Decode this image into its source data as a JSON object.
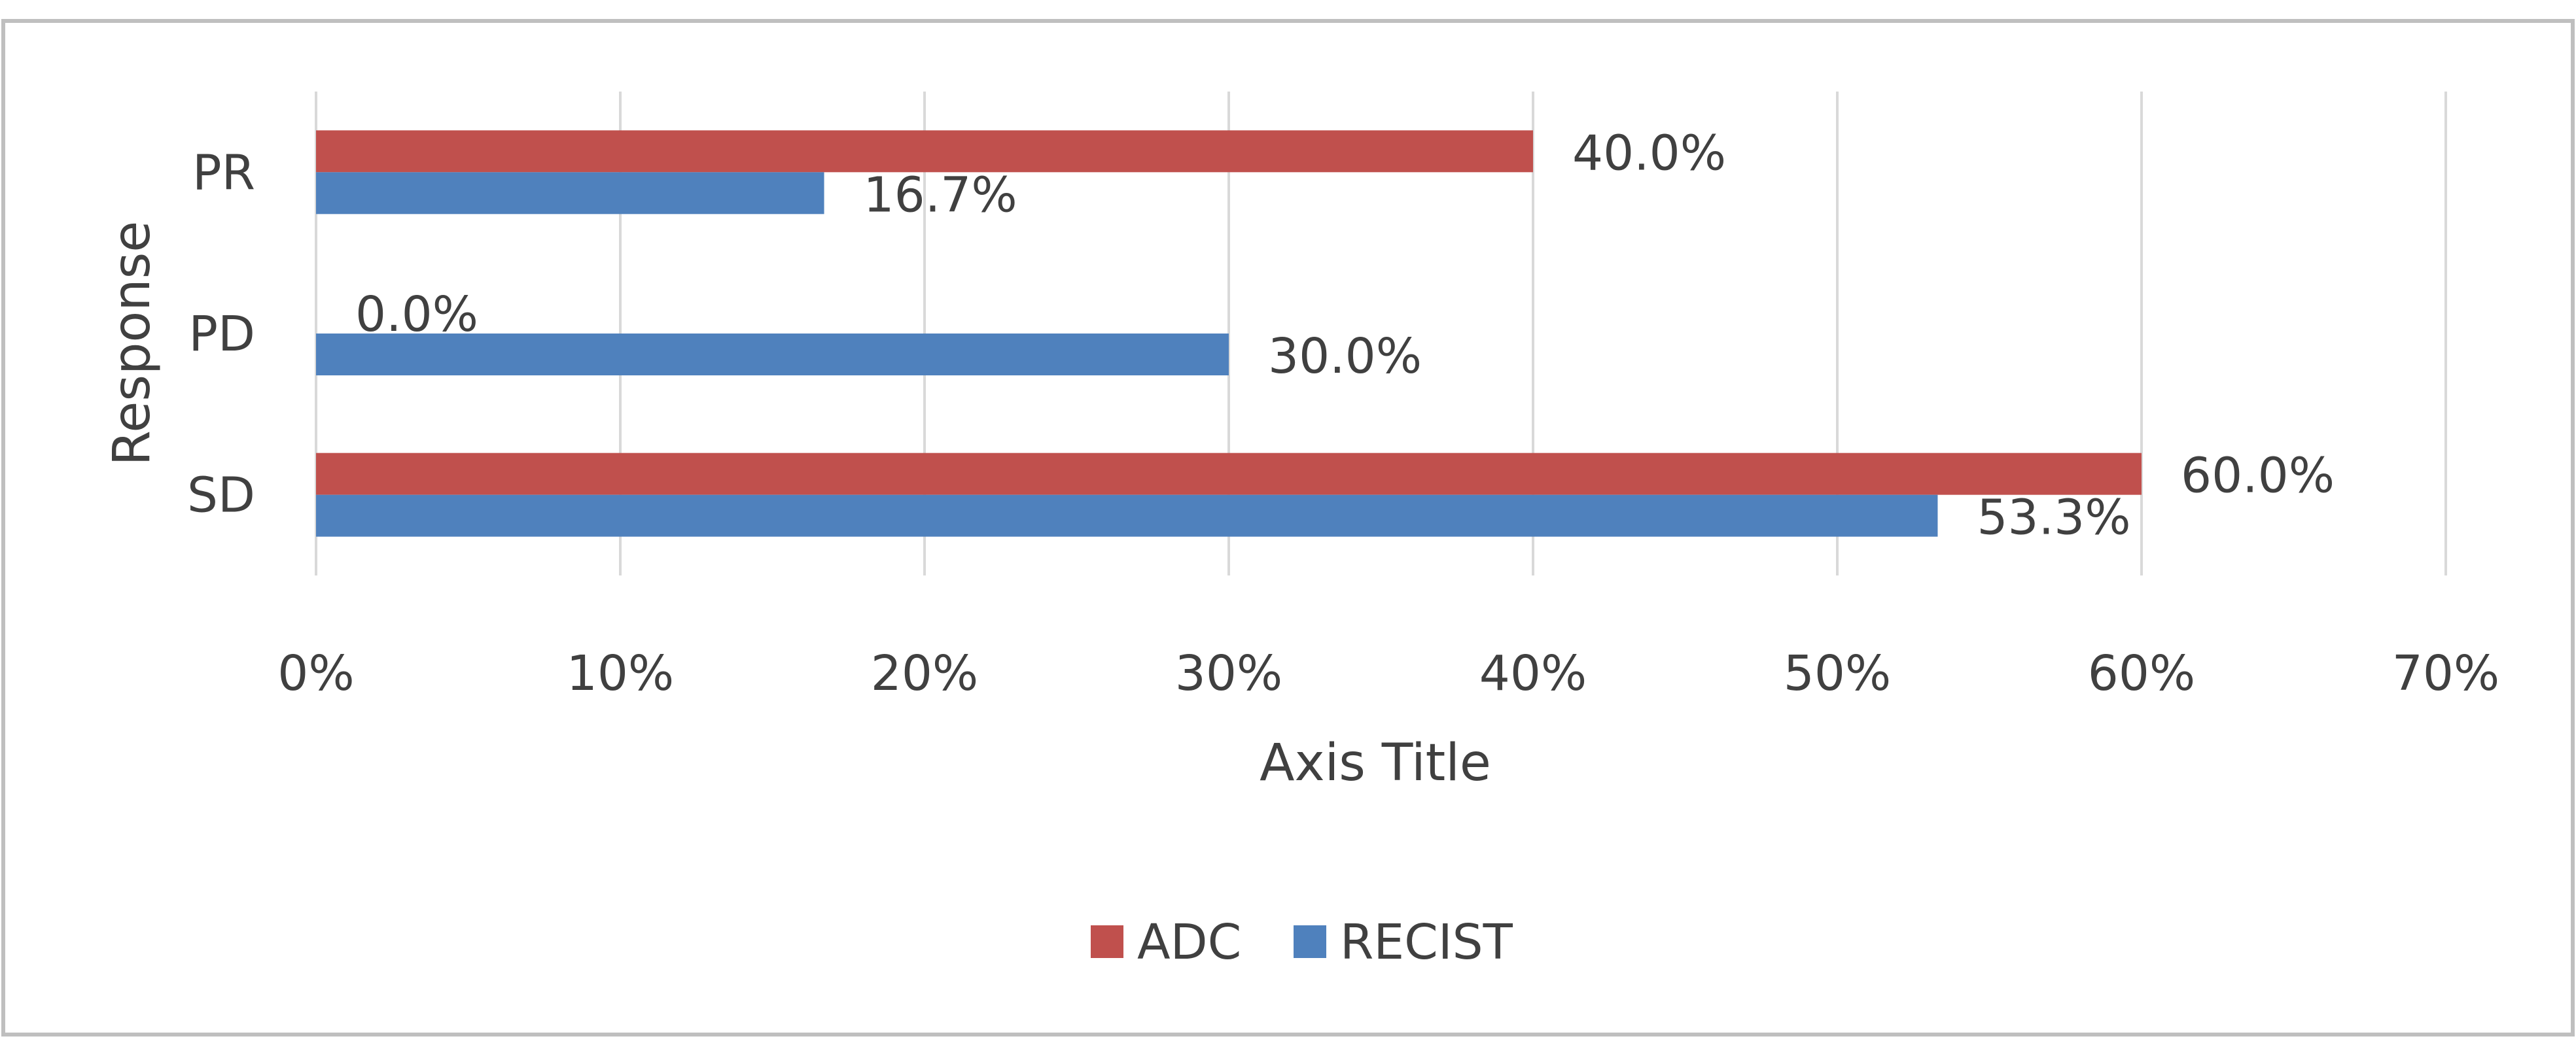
{
  "chart_data": {
    "type": "bar",
    "orientation": "horizontal",
    "title": "",
    "xlabel": "Axis Title",
    "ylabel": "Response",
    "categories": [
      "PR",
      "PD",
      "SD"
    ],
    "series": [
      {
        "name": "ADC",
        "values": [
          40.0,
          0.0,
          60.0
        ],
        "labels": [
          "40.0%",
          "0.0%",
          "60.0%"
        ],
        "color": "#c0504d"
      },
      {
        "name": "RECIST",
        "values": [
          16.7,
          30.0,
          53.3
        ],
        "labels": [
          "16.7%",
          "30.0%",
          "53.3%"
        ],
        "color": "#4f81bd"
      }
    ],
    "xlim": [
      0,
      70
    ],
    "xticks": [
      0,
      10,
      20,
      30,
      40,
      50,
      60,
      70
    ],
    "xtick_labels": [
      "0%",
      "10%",
      "20%",
      "30%",
      "40%",
      "50%",
      "60%",
      "70%"
    ],
    "grid": "vertical",
    "legend_position": "bottom",
    "legend": [
      "ADC",
      "RECIST"
    ]
  },
  "colors": {
    "adc": "#c0504d",
    "recist": "#4f81bd",
    "gridline": "#d9d9d9",
    "frame": "#bfbfbf",
    "text": "#404040"
  }
}
